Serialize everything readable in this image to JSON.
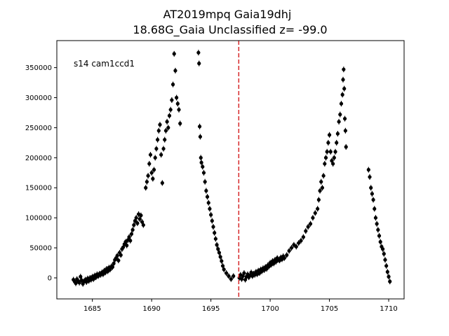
{
  "chart_data": {
    "type": "scatter",
    "title": "AT2019mpq  Gaia19dhj",
    "subtitle": "18.68G_Gaia Unclassified z= -99.0",
    "annotation": "s14 cam1ccd1",
    "xlabel": "",
    "ylabel": "",
    "xlim": [
      1682.0,
      1711.3
    ],
    "ylim": [
      -35000,
      395000
    ],
    "x_ticks": [
      1685,
      1690,
      1695,
      1700,
      1705,
      1710
    ],
    "x_tick_labels": [
      "1685",
      "1690",
      "1695",
      "1700",
      "1705",
      "1710"
    ],
    "y_ticks": [
      0,
      50000,
      100000,
      150000,
      200000,
      250000,
      300000,
      350000
    ],
    "y_tick_labels": [
      "0",
      "50000",
      "100000",
      "150000",
      "200000",
      "250000",
      "300000",
      "350000"
    ],
    "grid": false,
    "vline": {
      "x": 1697.35,
      "color": "#d62728",
      "style": "dashed"
    },
    "point_color": "#000000",
    "series": [
      {
        "points": [
          [
            1683.4,
            -3000
          ],
          [
            1683.5,
            -6000
          ],
          [
            1683.6,
            -9000
          ],
          [
            1683.7,
            -2000
          ],
          [
            1683.8,
            -5000
          ],
          [
            1683.9,
            -8000
          ],
          [
            1684.0,
            2000
          ],
          [
            1684.1,
            -4000
          ],
          [
            1684.2,
            -10000
          ],
          [
            1684.3,
            -6000
          ],
          [
            1684.4,
            -3000
          ],
          [
            1684.5,
            -7000
          ],
          [
            1684.6,
            -1000
          ],
          [
            1684.7,
            -5000
          ],
          [
            1684.8,
            0
          ],
          [
            1684.9,
            -3000
          ],
          [
            1685.0,
            2000
          ],
          [
            1685.1,
            -2000
          ],
          [
            1685.2,
            4000
          ],
          [
            1685.3,
            1000
          ],
          [
            1685.4,
            6000
          ],
          [
            1685.5,
            3000
          ],
          [
            1685.6,
            7000
          ],
          [
            1685.7,
            5000
          ],
          [
            1685.8,
            9000
          ],
          [
            1685.9,
            6000
          ],
          [
            1686.0,
            12000
          ],
          [
            1686.1,
            9000
          ],
          [
            1686.2,
            15000
          ],
          [
            1686.3,
            11000
          ],
          [
            1686.4,
            17000
          ],
          [
            1686.5,
            14000
          ],
          [
            1686.6,
            19000
          ],
          [
            1686.7,
            18000
          ],
          [
            1686.8,
            24000
          ],
          [
            1686.9,
            30000
          ],
          [
            1687.0,
            33000
          ],
          [
            1687.1,
            37000
          ],
          [
            1687.2,
            29000
          ],
          [
            1687.3,
            42000
          ],
          [
            1687.4,
            38000
          ],
          [
            1687.5,
            48000
          ],
          [
            1687.6,
            51000
          ],
          [
            1687.7,
            56000
          ],
          [
            1687.8,
            60000
          ],
          [
            1687.9,
            54000
          ],
          [
            1688.0,
            63000
          ],
          [
            1688.1,
            68000
          ],
          [
            1688.2,
            62000
          ],
          [
            1688.3,
            73000
          ],
          [
            1688.4,
            80000
          ],
          [
            1688.5,
            88000
          ],
          [
            1688.6,
            95000
          ],
          [
            1688.7,
            100000
          ],
          [
            1688.8,
            91000
          ],
          [
            1688.9,
            106000
          ],
          [
            1689.0,
            98000
          ],
          [
            1689.1,
            104000
          ],
          [
            1689.2,
            93000
          ],
          [
            1689.3,
            88000
          ],
          [
            1689.5,
            150000
          ],
          [
            1689.6,
            160000
          ],
          [
            1689.7,
            170000
          ],
          [
            1689.8,
            190000
          ],
          [
            1689.9,
            205000
          ],
          [
            1690.0,
            175000
          ],
          [
            1690.1,
            165000
          ],
          [
            1690.2,
            180000
          ],
          [
            1690.3,
            200000
          ],
          [
            1690.4,
            215000
          ],
          [
            1690.5,
            230000
          ],
          [
            1690.6,
            245000
          ],
          [
            1690.7,
            255000
          ],
          [
            1690.8,
            205000
          ],
          [
            1690.9,
            158000
          ],
          [
            1691.0,
            215000
          ],
          [
            1691.1,
            230000
          ],
          [
            1691.2,
            245000
          ],
          [
            1691.3,
            260000
          ],
          [
            1691.4,
            250000
          ],
          [
            1691.5,
            270000
          ],
          [
            1691.6,
            280000
          ],
          [
            1691.7,
            296000
          ],
          [
            1691.8,
            322000
          ],
          [
            1691.9,
            373000
          ],
          [
            1692.0,
            345000
          ],
          [
            1692.1,
            300000
          ],
          [
            1692.2,
            290000
          ],
          [
            1692.3,
            280000
          ],
          [
            1692.4,
            257000
          ],
          [
            1693.95,
            375000
          ],
          [
            1694.0,
            357000
          ],
          [
            1694.05,
            252000
          ],
          [
            1694.1,
            235000
          ],
          [
            1694.15,
            200000
          ],
          [
            1694.2,
            192000
          ],
          [
            1694.3,
            185000
          ],
          [
            1694.4,
            175000
          ],
          [
            1694.5,
            160000
          ],
          [
            1694.6,
            145000
          ],
          [
            1694.7,
            135000
          ],
          [
            1694.8,
            125000
          ],
          [
            1694.9,
            115000
          ],
          [
            1695.0,
            105000
          ],
          [
            1695.1,
            95000
          ],
          [
            1695.2,
            85000
          ],
          [
            1695.3,
            75000
          ],
          [
            1695.4,
            65000
          ],
          [
            1695.5,
            55000
          ],
          [
            1695.6,
            48000
          ],
          [
            1695.7,
            42000
          ],
          [
            1695.8,
            35000
          ],
          [
            1695.9,
            28000
          ],
          [
            1696.0,
            20000
          ],
          [
            1696.1,
            14000
          ],
          [
            1696.3,
            8000
          ],
          [
            1696.5,
            3000
          ],
          [
            1696.7,
            -2000
          ],
          [
            1696.9,
            3000
          ],
          [
            1697.4,
            0
          ],
          [
            1697.5,
            5000
          ],
          [
            1697.6,
            -2000
          ],
          [
            1697.7,
            3000
          ],
          [
            1697.8,
            8000
          ],
          [
            1697.9,
            -3000
          ],
          [
            1698.0,
            2000
          ],
          [
            1698.1,
            6000
          ],
          [
            1698.2,
            1000
          ],
          [
            1698.3,
            4000
          ],
          [
            1698.4,
            9000
          ],
          [
            1698.5,
            3000
          ],
          [
            1698.6,
            7000
          ],
          [
            1698.7,
            5000
          ],
          [
            1698.8,
            10000
          ],
          [
            1698.9,
            6000
          ],
          [
            1699.0,
            12000
          ],
          [
            1699.1,
            8000
          ],
          [
            1699.2,
            14000
          ],
          [
            1699.3,
            11000
          ],
          [
            1699.4,
            16000
          ],
          [
            1699.5,
            13000
          ],
          [
            1699.6,
            18000
          ],
          [
            1699.7,
            15000
          ],
          [
            1699.8,
            21000
          ],
          [
            1699.9,
            19000
          ],
          [
            1700.0,
            25000
          ],
          [
            1700.1,
            22000
          ],
          [
            1700.2,
            28000
          ],
          [
            1700.3,
            24000
          ],
          [
            1700.4,
            30000
          ],
          [
            1700.5,
            27000
          ],
          [
            1700.6,
            33000
          ],
          [
            1700.7,
            30000
          ],
          [
            1700.8,
            29000
          ],
          [
            1700.9,
            34000
          ],
          [
            1701.0,
            31000
          ],
          [
            1701.1,
            36000
          ],
          [
            1701.2,
            33000
          ],
          [
            1701.4,
            38000
          ],
          [
            1701.6,
            45000
          ],
          [
            1701.8,
            50000
          ],
          [
            1702.0,
            55000
          ],
          [
            1702.2,
            52000
          ],
          [
            1702.4,
            58000
          ],
          [
            1702.6,
            62000
          ],
          [
            1702.8,
            68000
          ],
          [
            1703.0,
            78000
          ],
          [
            1703.2,
            85000
          ],
          [
            1703.4,
            90000
          ],
          [
            1703.6,
            100000
          ],
          [
            1703.8,
            108000
          ],
          [
            1704.0,
            115000
          ],
          [
            1704.1,
            130000
          ],
          [
            1704.2,
            145000
          ],
          [
            1704.3,
            160000
          ],
          [
            1704.4,
            150000
          ],
          [
            1704.5,
            170000
          ],
          [
            1704.6,
            190000
          ],
          [
            1704.7,
            200000
          ],
          [
            1704.8,
            210000
          ],
          [
            1704.9,
            225000
          ],
          [
            1705.0,
            238000
          ],
          [
            1705.1,
            210000
          ],
          [
            1705.2,
            195000
          ],
          [
            1705.3,
            190000
          ],
          [
            1705.4,
            200000
          ],
          [
            1705.5,
            210000
          ],
          [
            1705.6,
            225000
          ],
          [
            1705.7,
            240000
          ],
          [
            1705.8,
            260000
          ],
          [
            1705.9,
            272000
          ],
          [
            1706.0,
            290000
          ],
          [
            1706.1,
            305000
          ],
          [
            1706.15,
            330000
          ],
          [
            1706.2,
            347000
          ],
          [
            1706.25,
            315000
          ],
          [
            1706.3,
            265000
          ],
          [
            1706.35,
            245000
          ],
          [
            1706.4,
            218000
          ],
          [
            1708.3,
            180000
          ],
          [
            1708.4,
            168000
          ],
          [
            1708.5,
            150000
          ],
          [
            1708.6,
            140000
          ],
          [
            1708.7,
            130000
          ],
          [
            1708.8,
            115000
          ],
          [
            1708.9,
            100000
          ],
          [
            1709.0,
            90000
          ],
          [
            1709.1,
            80000
          ],
          [
            1709.2,
            70000
          ],
          [
            1709.3,
            60000
          ],
          [
            1709.4,
            52000
          ],
          [
            1709.5,
            48000
          ],
          [
            1709.6,
            40000
          ],
          [
            1709.7,
            30000
          ],
          [
            1709.8,
            20000
          ],
          [
            1709.9,
            10000
          ],
          [
            1710.0,
            2000
          ],
          [
            1710.1,
            -6000
          ]
        ]
      }
    ]
  }
}
